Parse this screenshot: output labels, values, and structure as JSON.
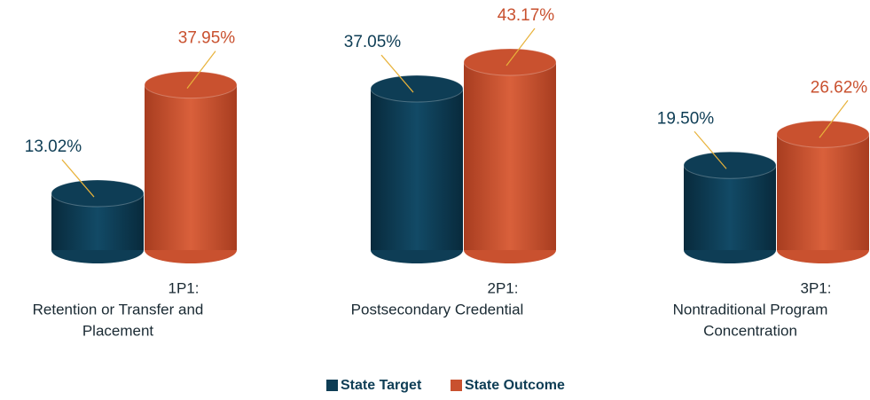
{
  "chart_data": {
    "type": "bar3d",
    "categories": [
      [
        "1P1:",
        "Retention or Transfer and",
        "Placement"
      ],
      [
        "2P1:",
        "Postsecondary Credential"
      ],
      [
        "3P1:",
        "Nontraditional Program",
        "Concentration"
      ]
    ],
    "series": [
      {
        "name": "State Target",
        "color": "#0e3d55",
        "values": [
          13.02,
          37.05,
          19.5
        ],
        "value_labels": [
          "13.02%",
          "37.05%",
          "19.50%"
        ]
      },
      {
        "name": "State Outcome",
        "color": "#c9512f",
        "values": [
          37.95,
          43.17,
          26.62
        ],
        "value_labels": [
          "37.95%",
          "43.17%",
          "26.62%"
        ]
      }
    ],
    "legend": "bottom"
  }
}
